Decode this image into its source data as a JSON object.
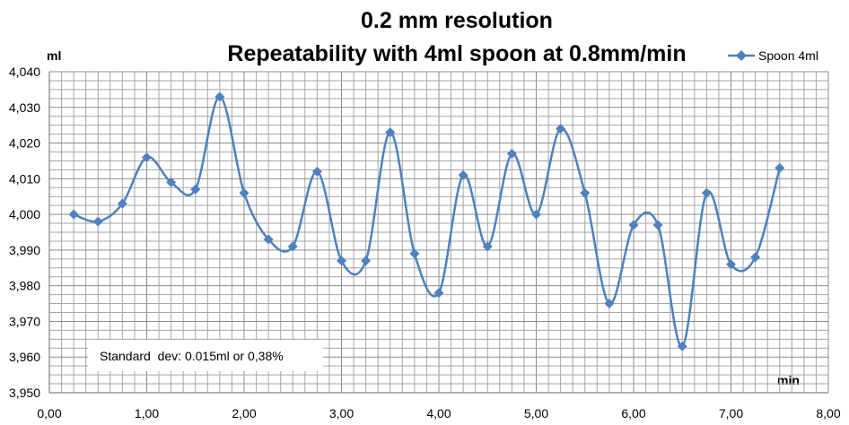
{
  "chart_data": {
    "type": "line",
    "smoothed": true,
    "title_lines": [
      "0.2 mm resolution",
      "Repeatability with 4ml spoon at 0.8mm/min"
    ],
    "xlabel": "min",
    "ylabel": "ml",
    "xlim": [
      0,
      8
    ],
    "ylim": [
      3.95,
      4.04
    ],
    "x_major_step": 1,
    "x_minor_step": 0.125,
    "y_major_step": 0.01,
    "y_minor_step": 0.0025,
    "x_tick_labels": [
      "0,00",
      "1,00",
      "2,00",
      "3,00",
      "4,00",
      "5,00",
      "6,00",
      "7,00",
      "8,00"
    ],
    "y_tick_labels": [
      "3,950",
      "3,960",
      "3,970",
      "3,980",
      "3,990",
      "4,000",
      "4,010",
      "4,020",
      "4,030",
      "4,040"
    ],
    "grid": true,
    "legend_position": "top-right",
    "annotation": "Standard  dev: 0.015ml or 0,38%",
    "colors": {
      "series": "#4F81BD",
      "grid": "#a6a6a6",
      "axis": "#808080"
    },
    "series": [
      {
        "name": "Spoon 4ml",
        "marker": "diamond",
        "x": [
          0.25,
          0.5,
          0.75,
          1.0,
          1.25,
          1.5,
          1.75,
          2.0,
          2.25,
          2.5,
          2.75,
          3.0,
          3.25,
          3.5,
          3.75,
          4.0,
          4.25,
          4.5,
          4.75,
          5.0,
          5.25,
          5.5,
          5.75,
          6.0,
          6.25,
          6.5,
          6.75,
          7.0,
          7.25,
          7.5
        ],
        "y": [
          4.0,
          3.998,
          4.003,
          4.016,
          4.009,
          4.007,
          4.033,
          4.006,
          3.993,
          3.991,
          4.012,
          3.987,
          3.987,
          4.023,
          3.989,
          3.978,
          4.011,
          3.991,
          4.017,
          4.0,
          4.024,
          4.006,
          3.975,
          3.997,
          3.997,
          3.963,
          4.006,
          3.986,
          3.988,
          4.013
        ]
      }
    ]
  }
}
